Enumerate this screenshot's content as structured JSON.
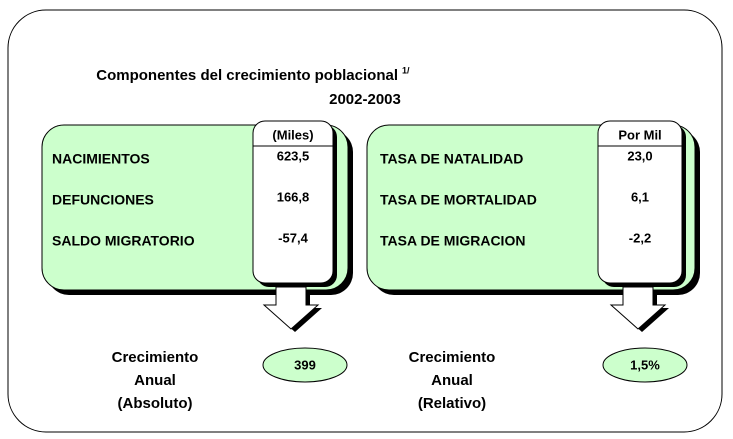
{
  "header": {
    "title": "Componentes del crecimiento poblacional",
    "note": "1/",
    "period": "2002-2003"
  },
  "panels": [
    {
      "column_header": "(Miles)",
      "rows": [
        {
          "label": "NACIMIENTOS",
          "value": "623,5"
        },
        {
          "label": "DEFUNCIONES",
          "value": "166,8"
        },
        {
          "label": "SALDO MIGRATORIO",
          "value": "-57,4"
        }
      ],
      "result_label": [
        "Crecimiento",
        "Anual",
        "(Absoluto)"
      ],
      "result": "399"
    },
    {
      "column_header": "Por Mil",
      "rows": [
        {
          "label": "TASA DE NATALIDAD",
          "value": "23,0"
        },
        {
          "label": "TASA DE MORTALIDAD",
          "value": "6,1"
        },
        {
          "label": "TASA DE MIGRACION",
          "value": "-2,2"
        }
      ],
      "result_label": [
        "Crecimiento",
        "Anual",
        "(Relativo)"
      ],
      "result": "1,5%"
    }
  ]
}
